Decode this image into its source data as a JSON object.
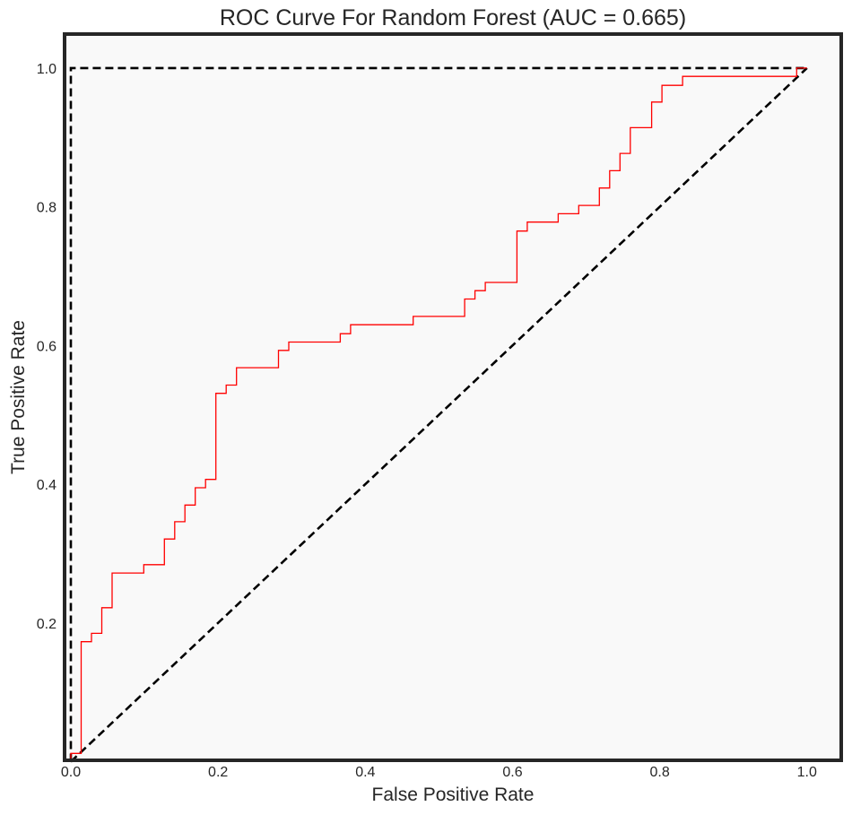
{
  "chart_data": {
    "type": "line",
    "title": "ROC Curve For Random Forest (AUC =  0.665)",
    "xlabel": "False Positive Rate",
    "ylabel": "True Positive Rate",
    "xlim": [
      -0.011,
      1.049
    ],
    "ylim": [
      0.002,
      1.049
    ],
    "xticks": [
      "0.0",
      "0.2",
      "0.4",
      "0.6",
      "0.8",
      "1.0"
    ],
    "xtick_values": [
      0,
      0.2,
      0.4,
      0.6,
      0.8,
      1.0
    ],
    "yticks": [
      "0.2",
      "0.4",
      "0.6",
      "0.8",
      "1.0"
    ],
    "ytick_values": [
      0.2,
      0.4,
      0.6,
      0.8,
      1.0
    ],
    "grid": false,
    "background": "#f9f9f9",
    "frame_color": "#262626",
    "series": [
      {
        "color": "#ff0000",
        "style": "solid",
        "x": [
          0,
          0,
          0.014,
          0.014,
          0.028,
          0.028,
          0.042,
          0.042,
          0.056,
          0.056,
          0.099,
          0.099,
          0.127,
          0.127,
          0.141,
          0.141,
          0.155,
          0.155,
          0.169,
          0.169,
          0.183,
          0.183,
          0.197,
          0.197,
          0.211,
          0.211,
          0.225,
          0.225,
          0.282,
          0.282,
          0.296,
          0.296,
          0.366,
          0.366,
          0.38,
          0.38,
          0.465,
          0.465,
          0.535,
          0.535,
          0.549,
          0.549,
          0.563,
          0.563,
          0.606,
          0.606,
          0.62,
          0.62,
          0.662,
          0.662,
          0.69,
          0.69,
          0.718,
          0.718,
          0.732,
          0.732,
          0.746,
          0.746,
          0.76,
          0.76,
          0.789,
          0.789,
          0.803,
          0.803,
          0.831,
          0.831,
          0.986,
          0.986,
          1.0
        ],
        "y": [
          0,
          0.012,
          0.012,
          0.173,
          0.173,
          0.185,
          0.185,
          0.222,
          0.222,
          0.272,
          0.272,
          0.284,
          0.284,
          0.321,
          0.321,
          0.346,
          0.346,
          0.37,
          0.37,
          0.395,
          0.395,
          0.407,
          0.407,
          0.531,
          0.531,
          0.543,
          0.543,
          0.568,
          0.568,
          0.593,
          0.593,
          0.605,
          0.605,
          0.617,
          0.617,
          0.63,
          0.63,
          0.642,
          0.642,
          0.667,
          0.667,
          0.679,
          0.679,
          0.691,
          0.691,
          0.765,
          0.765,
          0.778,
          0.778,
          0.79,
          0.79,
          0.802,
          0.802,
          0.827,
          0.827,
          0.852,
          0.852,
          0.877,
          0.877,
          0.914,
          0.914,
          0.951,
          0.951,
          0.975,
          0.975,
          0.988,
          0.988,
          1.0,
          1.0
        ]
      },
      {
        "color": "#000000",
        "style": "dashed",
        "x": [
          0,
          1
        ],
        "y": [
          0,
          1
        ]
      },
      {
        "color": "#000000",
        "style": "dashed",
        "x": [
          0,
          0,
          1
        ],
        "y": [
          0,
          1,
          1
        ]
      }
    ]
  }
}
